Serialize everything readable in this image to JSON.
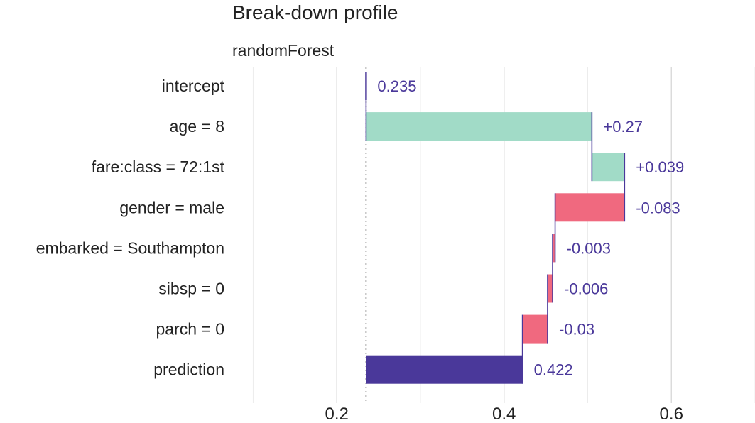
{
  "chart_data": {
    "type": "bar",
    "chart_kind": "break-down waterfall",
    "title": "Break-down profile",
    "subtitle": "randomForest",
    "xlabel": "",
    "ylabel": "",
    "xlim": [
      0.075,
      0.7
    ],
    "x_ticks": [
      0.2,
      0.4,
      0.6
    ],
    "x_tick_labels": [
      "0.2",
      "0.4",
      "0.6"
    ],
    "x_minor_ticks": [
      0.1,
      0.3,
      0.5,
      0.7
    ],
    "grid": true,
    "baseline": 0.235,
    "categories": [
      "intercept",
      "age = 8",
      "fare:class = 72:1st",
      "gender = male",
      "embarked = Southampton",
      "sibsp = 0",
      "parch = 0",
      "prediction"
    ],
    "contributions": [
      0.235,
      0.27,
      0.039,
      -0.083,
      -0.003,
      -0.006,
      -0.03,
      0.422
    ],
    "bar_start": [
      0.235,
      0.235,
      0.505,
      0.544,
      0.461,
      0.458,
      0.452,
      0.235
    ],
    "bar_end": [
      0.235,
      0.505,
      0.544,
      0.461,
      0.458,
      0.452,
      0.422,
      0.422
    ],
    "value_labels": [
      "0.235",
      "+0.27",
      "+0.039",
      "-0.083",
      "-0.003",
      "-0.006",
      "-0.03",
      "0.422"
    ],
    "colors": {
      "positive": "#a1dbc7",
      "negative": "#f0697f",
      "prediction": "#4a389a",
      "intercept": "#4a389a",
      "connector": "#4a389a",
      "label_text": "#4a389a",
      "baseline_line": "#777777"
    }
  }
}
